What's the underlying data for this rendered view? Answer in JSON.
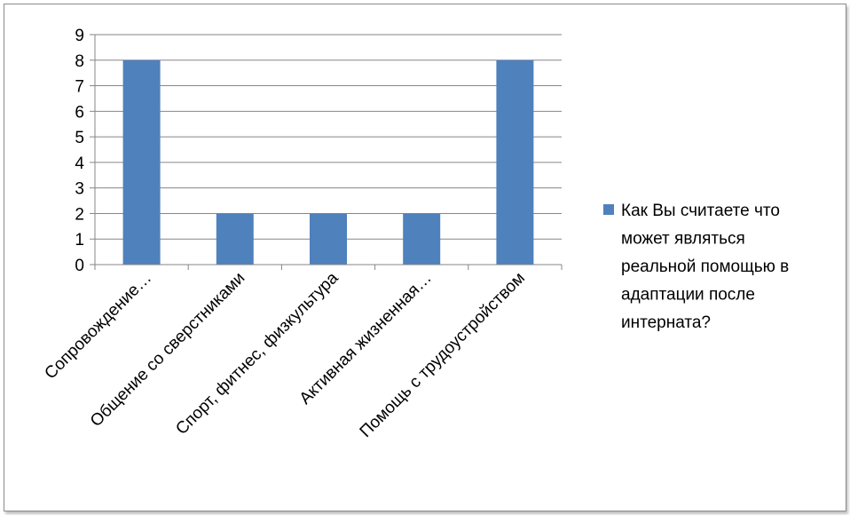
{
  "chart_data": {
    "type": "bar",
    "categories": [
      "Сопровождение…",
      "Общение со сверстниками",
      "Спорт, фитнес, физкультура",
      "Активная жизненная…",
      "Помощь с трудоустройством"
    ],
    "series": [
      {
        "name": "Как Вы считаете что может являться реальной помощью в адаптации после интерната?",
        "name_lines": [
          "Как Вы считаете что",
          "может являться",
          "реальной помощью в",
          "адаптации после",
          "интерната?"
        ],
        "values": [
          8,
          2,
          2,
          2,
          8
        ],
        "color": "#4f81bd"
      }
    ],
    "y_ticks": [
      "0",
      "1",
      "2",
      "3",
      "4",
      "5",
      "6",
      "7",
      "8",
      "9"
    ],
    "ylim": [
      0,
      9
    ],
    "grid": true,
    "legend_position": "right",
    "title": "",
    "xlabel": "",
    "ylabel": ""
  }
}
